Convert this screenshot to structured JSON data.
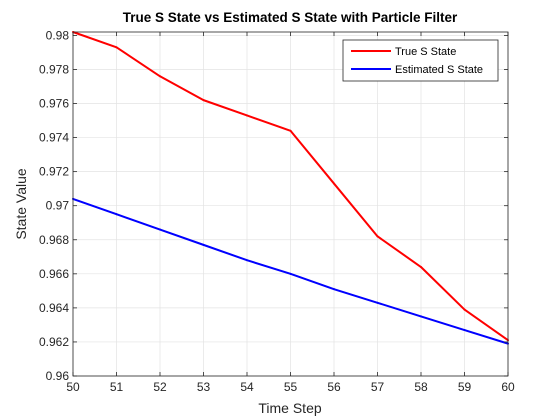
{
  "chart_data": {
    "type": "line",
    "title": "True S State vs Estimated S State with Particle Filter",
    "xlabel": "Time Step",
    "ylabel": "State Value",
    "xlim": [
      50,
      60
    ],
    "ylim": [
      0.96,
      0.9802
    ],
    "x_ticks": [
      50,
      51,
      52,
      53,
      54,
      55,
      56,
      57,
      58,
      59,
      60
    ],
    "y_ticks": [
      0.96,
      0.962,
      0.964,
      0.966,
      0.968,
      0.97,
      0.972,
      0.974,
      0.976,
      0.978,
      0.98
    ],
    "y_tick_labels": [
      "0.96",
      "0.962",
      "0.964",
      "0.966",
      "0.968",
      "0.97",
      "0.972",
      "0.974",
      "0.976",
      "0.978",
      "0.98"
    ],
    "grid": true,
    "legend_position": "top-right",
    "x": [
      50,
      51,
      52,
      53,
      54,
      55,
      56,
      57,
      58,
      59,
      60
    ],
    "series": [
      {
        "name": "True S State",
        "color": "#ff0000",
        "values": [
          0.9802,
          0.9793,
          0.9776,
          0.9762,
          0.9753,
          0.9744,
          0.9713,
          0.9682,
          0.9664,
          0.9639,
          0.9621
        ]
      },
      {
        "name": "Estimated S State",
        "color": "#0000ff",
        "values": [
          0.9704,
          0.9695,
          0.9686,
          0.9677,
          0.9668,
          0.966,
          0.9651,
          0.9643,
          0.9635,
          0.9627,
          0.9619
        ]
      }
    ]
  }
}
